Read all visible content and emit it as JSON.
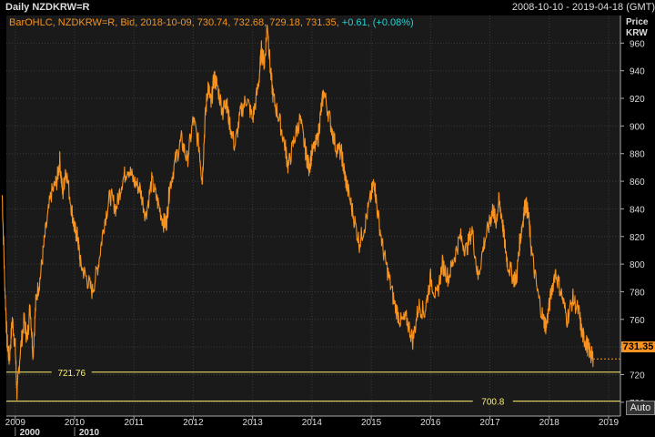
{
  "header": {
    "title": "Daily NZDKRW=R",
    "date_range": "2008-10-10 - 2019-04-18 (GMT)"
  },
  "info_line": {
    "text": "BarOHLC, NZDKRW=R, Bid, 2018-10-09, 730.74, 732.68, 729.18, 731.35,",
    "change": "+0.61, (+0.08%)"
  },
  "axis_title": {
    "line1": "Price",
    "line2": "KRW"
  },
  "auto_button": "Auto",
  "last_price_tag": "731.35",
  "colors": {
    "series": "#f7931e",
    "hline": "#ffef6b",
    "change": "#29d0d0",
    "plot_bg": "#1a1a1a"
  },
  "chart_data": {
    "type": "line",
    "title": "",
    "xlabel": "",
    "ylabel": "Price KRW",
    "ylim": [
      690,
      980
    ],
    "xlim": [
      2008.85,
      2019.2
    ],
    "grid": true,
    "yticks": [
      700,
      720,
      740,
      760,
      780,
      800,
      820,
      840,
      860,
      880,
      900,
      920,
      940,
      960
    ],
    "ytick_labels": [
      "700",
      "720",
      "740",
      "760",
      "780",
      "800",
      "820",
      "840",
      "860",
      "880",
      "900",
      "920",
      "940",
      "960"
    ],
    "xticks": [
      2009,
      2010,
      2011,
      2012,
      2013,
      2014,
      2015,
      2016,
      2017,
      2018,
      2019
    ],
    "xtick_labels": [
      "2009",
      "2010",
      "2011",
      "2012",
      "2013",
      "2014",
      "2015",
      "2016",
      "2017",
      "2018",
      "2019"
    ],
    "decade_labels": [
      {
        "x": 2009,
        "label": "2000"
      },
      {
        "x": 2010,
        "label": "2010"
      }
    ],
    "hlines": [
      {
        "y": 721.76,
        "label": "721.76",
        "label_x": 2009.95
      },
      {
        "y": 700.8,
        "label": "700.8",
        "label_x": 2017.05
      }
    ],
    "series": [
      {
        "points": [
          [
            2008.78,
            850
          ],
          [
            2008.82,
            790
          ],
          [
            2008.86,
            745
          ],
          [
            2008.9,
            730
          ],
          [
            2008.95,
            760
          ],
          [
            2009.0,
            740
          ],
          [
            2009.03,
            705
          ],
          [
            2009.08,
            735
          ],
          [
            2009.15,
            760
          ],
          [
            2009.2,
            745
          ],
          [
            2009.25,
            770
          ],
          [
            2009.3,
            735
          ],
          [
            2009.35,
            775
          ],
          [
            2009.42,
            790
          ],
          [
            2009.5,
            820
          ],
          [
            2009.6,
            850
          ],
          [
            2009.7,
            860
          ],
          [
            2009.75,
            875
          ],
          [
            2009.8,
            850
          ],
          [
            2009.85,
            870
          ],
          [
            2009.95,
            840
          ],
          [
            2010.0,
            825
          ],
          [
            2010.05,
            820
          ],
          [
            2010.1,
            800
          ],
          [
            2010.2,
            790
          ],
          [
            2010.3,
            780
          ],
          [
            2010.4,
            800
          ],
          [
            2010.5,
            830
          ],
          [
            2010.6,
            850
          ],
          [
            2010.7,
            840
          ],
          [
            2010.8,
            860
          ],
          [
            2010.9,
            870
          ],
          [
            2011.0,
            860
          ],
          [
            2011.1,
            855
          ],
          [
            2011.2,
            835
          ],
          [
            2011.3,
            860
          ],
          [
            2011.4,
            845
          ],
          [
            2011.5,
            830
          ],
          [
            2011.55,
            830
          ],
          [
            2011.6,
            855
          ],
          [
            2011.7,
            875
          ],
          [
            2011.8,
            890
          ],
          [
            2011.9,
            875
          ],
          [
            2012.0,
            905
          ],
          [
            2012.1,
            885
          ],
          [
            2012.15,
            860
          ],
          [
            2012.2,
            905
          ],
          [
            2012.25,
            930
          ],
          [
            2012.3,
            915
          ],
          [
            2012.35,
            935
          ],
          [
            2012.4,
            930
          ],
          [
            2012.5,
            910
          ],
          [
            2012.55,
            920
          ],
          [
            2012.6,
            905
          ],
          [
            2012.7,
            885
          ],
          [
            2012.8,
            910
          ],
          [
            2012.9,
            920
          ],
          [
            2013.0,
            905
          ],
          [
            2013.1,
            930
          ],
          [
            2013.15,
            955
          ],
          [
            2013.2,
            945
          ],
          [
            2013.25,
            975
          ],
          [
            2013.3,
            940
          ],
          [
            2013.35,
            920
          ],
          [
            2013.45,
            905
          ],
          [
            2013.55,
            885
          ],
          [
            2013.6,
            870
          ],
          [
            2013.7,
            890
          ],
          [
            2013.8,
            905
          ],
          [
            2013.9,
            880
          ],
          [
            2013.95,
            870
          ],
          [
            2014.0,
            880
          ],
          [
            2014.1,
            890
          ],
          [
            2014.15,
            910
          ],
          [
            2014.2,
            925
          ],
          [
            2014.3,
            905
          ],
          [
            2014.4,
            885
          ],
          [
            2014.5,
            880
          ],
          [
            2014.55,
            865
          ],
          [
            2014.6,
            855
          ],
          [
            2014.7,
            835
          ],
          [
            2014.8,
            815
          ],
          [
            2014.9,
            830
          ],
          [
            2015.0,
            850
          ],
          [
            2015.05,
            860
          ],
          [
            2015.1,
            840
          ],
          [
            2015.2,
            810
          ],
          [
            2015.3,
            790
          ],
          [
            2015.4,
            770
          ],
          [
            2015.5,
            758
          ],
          [
            2015.6,
            760
          ],
          [
            2015.7,
            745
          ],
          [
            2015.8,
            770
          ],
          [
            2015.9,
            765
          ],
          [
            2016.0,
            790
          ],
          [
            2016.1,
            775
          ],
          [
            2016.2,
            800
          ],
          [
            2016.3,
            790
          ],
          [
            2016.4,
            805
          ],
          [
            2016.5,
            820
          ],
          [
            2016.6,
            810
          ],
          [
            2016.7,
            825
          ],
          [
            2016.8,
            790
          ],
          [
            2016.9,
            815
          ],
          [
            2017.0,
            830
          ],
          [
            2017.05,
            840
          ],
          [
            2017.1,
            830
          ],
          [
            2017.15,
            845
          ],
          [
            2017.2,
            835
          ],
          [
            2017.25,
            815
          ],
          [
            2017.3,
            800
          ],
          [
            2017.4,
            790
          ],
          [
            2017.45,
            790
          ],
          [
            2017.5,
            815
          ],
          [
            2017.55,
            830
          ],
          [
            2017.6,
            845
          ],
          [
            2017.65,
            835
          ],
          [
            2017.7,
            810
          ],
          [
            2017.8,
            780
          ],
          [
            2017.9,
            760
          ],
          [
            2017.95,
            755
          ],
          [
            2018.0,
            770
          ],
          [
            2018.1,
            795
          ],
          [
            2018.2,
            780
          ],
          [
            2018.3,
            760
          ],
          [
            2018.4,
            775
          ],
          [
            2018.5,
            765
          ],
          [
            2018.55,
            750
          ],
          [
            2018.6,
            745
          ],
          [
            2018.65,
            740
          ],
          [
            2018.7,
            735
          ],
          [
            2018.74,
            731.35
          ]
        ]
      }
    ]
  }
}
